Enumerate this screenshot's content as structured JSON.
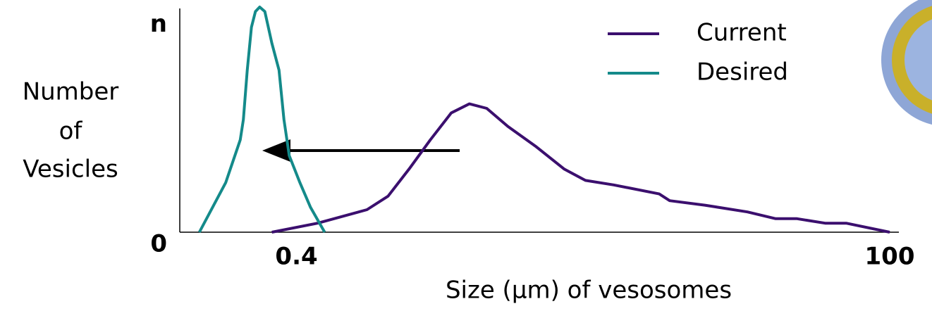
{
  "chart_data": {
    "type": "line",
    "xlabel": "Size (µm) of vesosomes",
    "ylabel_lines": [
      "Number",
      "of",
      "Vesicles"
    ],
    "xscale": "log",
    "xlim": [
      0.135,
      100
    ],
    "ylim": [
      0,
      1
    ],
    "xticks": [
      0.4,
      100
    ],
    "yticks": [
      0,
      {
        "value": 0.92,
        "label": "n"
      }
    ],
    "legend": "top-center",
    "series": [
      {
        "name": "Current",
        "color": "#3b0f6e",
        "x": [
          0.318,
          0.487,
          0.771,
          0.938,
          1.14,
          1.39,
          1.69,
          2.0,
          2.35,
          2.86,
          3.72,
          4.84,
          5.89,
          7.66,
          11.7,
          12.9,
          17.9,
          26.6,
          34.6,
          42.2,
          54.8,
          66.7,
          100
        ],
        "values": [
          0,
          0.04,
          0.1,
          0.16,
          0.28,
          0.41,
          0.53,
          0.57,
          0.55,
          0.47,
          0.38,
          0.28,
          0.23,
          0.21,
          0.17,
          0.14,
          0.12,
          0.09,
          0.06,
          0.06,
          0.04,
          0.04,
          0
        ]
      },
      {
        "name": "Desired",
        "color": "#148a8a",
        "x": [
          0.162,
          0.207,
          0.237,
          0.244,
          0.253,
          0.263,
          0.273,
          0.284,
          0.298,
          0.318,
          0.34,
          0.356,
          0.374,
          0.413,
          0.456,
          0.52
        ],
        "values": [
          0,
          0.22,
          0.41,
          0.5,
          0.72,
          0.91,
          0.98,
          1.0,
          0.98,
          0.84,
          0.72,
          0.5,
          0.34,
          0.22,
          0.11,
          0
        ]
      }
    ]
  }
}
